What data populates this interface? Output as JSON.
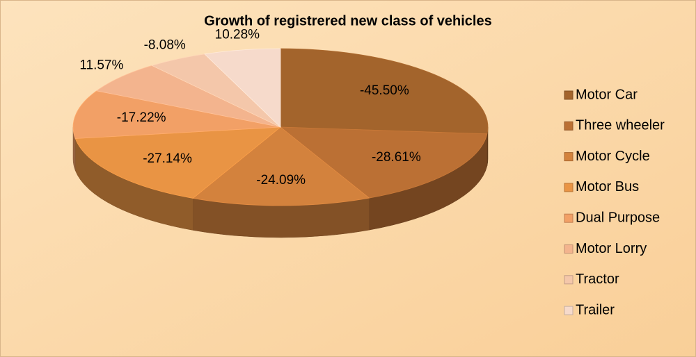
{
  "chart_data": {
    "type": "pie",
    "title": "Growth of registrered new class of vehicles",
    "categories": [
      "Motor Car",
      "Three wheeler",
      "Motor Cycle",
      "Motor Bus",
      "Dual Purpose",
      "Motor Lorry",
      "Tractor",
      "Trailer"
    ],
    "values": [
      -45.5,
      -28.61,
      -24.09,
      -27.14,
      -17.22,
      11.57,
      -8.08,
      10.28
    ],
    "value_labels": [
      "-45.50%",
      "-28.61%",
      "-24.09%",
      "-27.14%",
      "-17.22%",
      "11.57%",
      "-8.08%",
      "10.28%"
    ],
    "colors": [
      "#a3642c",
      "#bb7034",
      "#d3823d",
      "#e99444",
      "#f2a066",
      "#f3b48e",
      "#f4c7aa",
      "#f6dacb"
    ],
    "legend": "right"
  }
}
